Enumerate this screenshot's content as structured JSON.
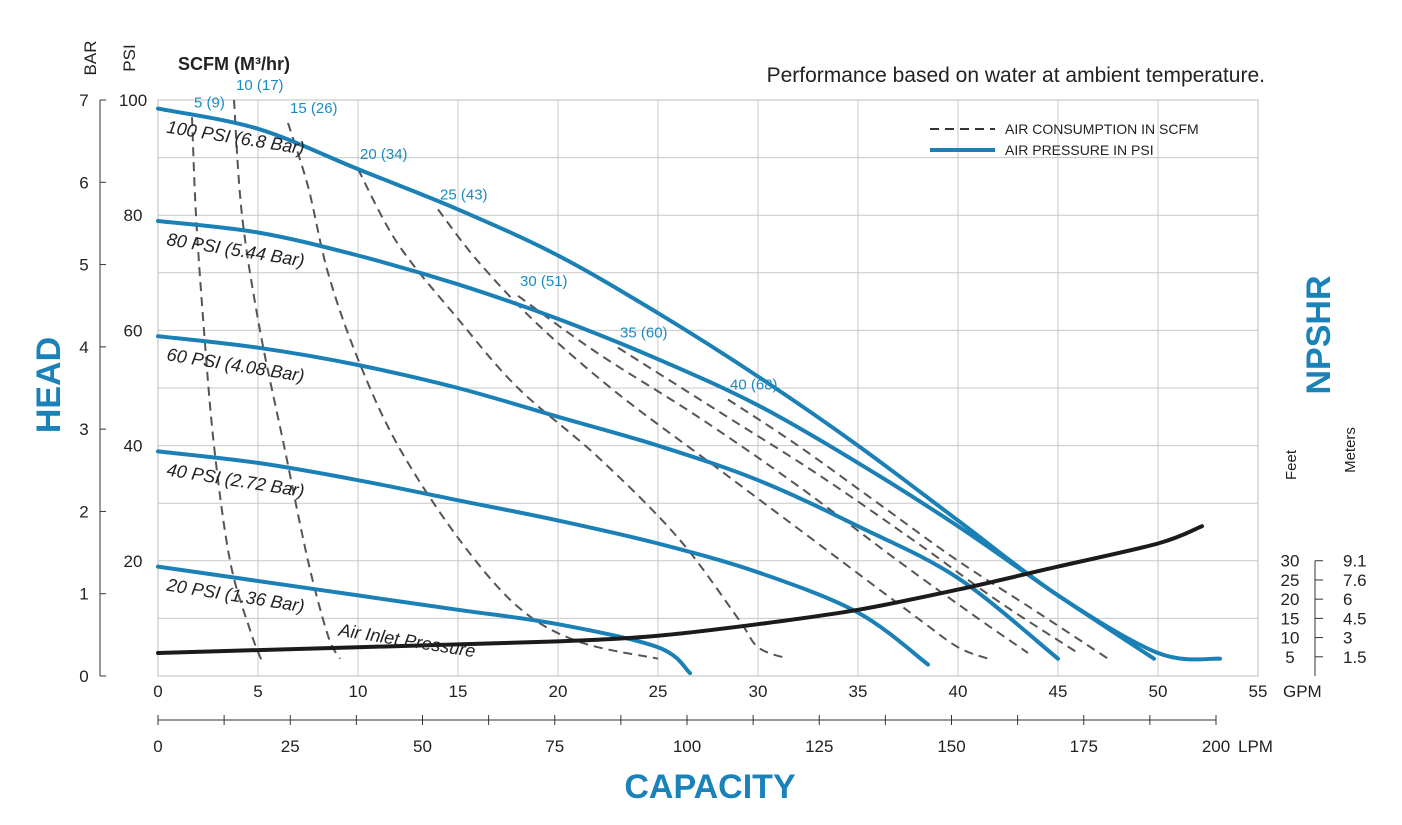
{
  "chart_data": {
    "type": "line",
    "title": "Performance based on water at ambient temperature.",
    "xlabel": "CAPACITY",
    "ylabel": "HEAD",
    "y2label": "NPSHR",
    "x_unit_primary": "GPM",
    "x_unit_secondary": "LPM",
    "y_unit_bar": "BAR",
    "y_unit_psi": "PSI",
    "scfm_header": "SCFM (M³/hr)",
    "xlim": [
      0,
      55
    ],
    "ylim_psi": [
      0,
      100
    ],
    "x_ticks_gpm": [
      "0",
      "5",
      "10",
      "15",
      "20",
      "25",
      "30",
      "35",
      "40",
      "45",
      "50",
      "55"
    ],
    "x_ticks_lpm": [
      "0",
      "25",
      "50",
      "75",
      "100",
      "125",
      "150",
      "175",
      "200"
    ],
    "y_ticks_bar": [
      "0",
      "1",
      "2",
      "3",
      "4",
      "5",
      "6",
      "7"
    ],
    "y_ticks_psi": [
      "20",
      "40",
      "60",
      "80",
      "100"
    ],
    "npshr_feet_label": "Feet",
    "npshr_meters_label": "Meters",
    "npshr_feet": [
      "30",
      "25",
      "20",
      "15",
      "10",
      "5"
    ],
    "npshr_meters": [
      "9.1",
      "7.6",
      "6",
      "4.5",
      "3",
      "1.5"
    ],
    "legend": {
      "placement": "top-right",
      "dashed_label": "AIR CONSUMPTION IN SCFM",
      "solid_label": "AIR PRESSURE IN PSI"
    },
    "pressure_curves": [
      {
        "label": "100 PSI (6.8 Bar)",
        "points": [
          [
            0,
            98.5
          ],
          [
            5,
            95
          ],
          [
            10,
            88
          ],
          [
            15,
            81
          ],
          [
            20,
            73
          ],
          [
            25,
            63
          ],
          [
            30,
            52
          ],
          [
            35,
            40
          ],
          [
            40,
            27
          ],
          [
            45,
            14
          ],
          [
            50,
            4
          ],
          [
            53.1,
            3
          ]
        ]
      },
      {
        "label": "80 PSI (5.44 Bar)",
        "points": [
          [
            0,
            79
          ],
          [
            5,
            77
          ],
          [
            10,
            73
          ],
          [
            15,
            68
          ],
          [
            20,
            62
          ],
          [
            25,
            55
          ],
          [
            30,
            47
          ],
          [
            35,
            37
          ],
          [
            40,
            26
          ],
          [
            45,
            14
          ],
          [
            49.8,
            3
          ]
        ]
      },
      {
        "label": "60 PSI (4.08 Bar)",
        "points": [
          [
            0,
            59
          ],
          [
            5,
            57
          ],
          [
            10,
            54
          ],
          [
            15,
            50
          ],
          [
            20,
            45
          ],
          [
            25,
            40
          ],
          [
            30,
            34
          ],
          [
            35,
            26
          ],
          [
            40,
            17
          ],
          [
            45,
            3
          ]
        ]
      },
      {
        "label": "40 PSI (2.72 Bar)",
        "points": [
          [
            0,
            39
          ],
          [
            5,
            37
          ],
          [
            10,
            34
          ],
          [
            15,
            30.5
          ],
          [
            20,
            27
          ],
          [
            25,
            23
          ],
          [
            30,
            18
          ],
          [
            35,
            11
          ],
          [
            38.5,
            2
          ]
        ]
      },
      {
        "label": "20 PSI (1.36 Bar)",
        "points": [
          [
            0,
            19
          ],
          [
            5,
            16.5
          ],
          [
            10,
            14
          ],
          [
            15,
            11.5
          ],
          [
            20,
            9
          ],
          [
            25,
            5
          ],
          [
            26.6,
            0.5
          ]
        ]
      }
    ],
    "air_inlet_label": "Air Inlet Pressure",
    "scfm_curves": [
      {
        "label": "5 (9)",
        "points": [
          [
            1.7,
            97
          ],
          [
            1.9,
            80
          ],
          [
            2.3,
            60
          ],
          [
            2.8,
            40
          ],
          [
            3.6,
            20
          ],
          [
            4.6,
            8
          ],
          [
            5.2,
            2.5
          ]
        ]
      },
      {
        "label": "10 (17)",
        "points": [
          [
            3.8,
            100
          ],
          [
            4.2,
            80
          ],
          [
            5.1,
            60
          ],
          [
            6.3,
            40
          ],
          [
            7.5,
            20
          ],
          [
            8.5,
            7
          ],
          [
            9.1,
            3
          ]
        ]
      },
      {
        "label": "15 (26)",
        "points": [
          [
            6.5,
            96
          ],
          [
            7.5,
            85
          ],
          [
            8.5,
            70
          ],
          [
            10,
            55
          ],
          [
            12,
            40
          ],
          [
            15,
            24
          ],
          [
            18,
            12
          ],
          [
            21,
            6
          ],
          [
            25,
            3
          ]
        ]
      },
      {
        "label": "20 (34)",
        "points": [
          [
            10,
            88
          ],
          [
            12,
            75
          ],
          [
            15,
            62
          ],
          [
            18,
            50
          ],
          [
            22,
            38
          ],
          [
            26,
            24
          ],
          [
            29,
            10
          ],
          [
            30,
            5
          ],
          [
            31.5,
            3
          ]
        ]
      },
      {
        "label": "25 (43)",
        "points": [
          [
            14,
            81
          ],
          [
            16,
            72
          ],
          [
            19,
            61
          ],
          [
            23,
            49
          ],
          [
            28,
            36
          ],
          [
            33,
            23
          ],
          [
            38,
            10
          ],
          [
            40,
            5
          ],
          [
            41.5,
            3
          ]
        ]
      },
      {
        "label": "30 (51)",
        "points": [
          [
            18,
            66
          ],
          [
            22,
            56
          ],
          [
            27,
            45
          ],
          [
            32,
            33
          ],
          [
            37,
            20
          ],
          [
            41,
            10
          ],
          [
            43.5,
            4
          ]
        ]
      },
      {
        "label": "35 (60)",
        "points": [
          [
            23,
            57
          ],
          [
            28,
            46
          ],
          [
            33,
            35
          ],
          [
            38,
            23
          ],
          [
            42,
            13
          ],
          [
            46,
            4
          ]
        ]
      },
      {
        "label": "40 (68)",
        "points": [
          [
            28.5,
            48
          ],
          [
            32,
            40
          ],
          [
            36,
            30
          ],
          [
            40,
            20
          ],
          [
            44,
            11
          ],
          [
            47.5,
            3
          ]
        ]
      }
    ],
    "npshr_curve": {
      "label": "NPSHR",
      "points": [
        [
          0,
          4
        ],
        [
          10,
          5
        ],
        [
          20,
          6
        ],
        [
          25,
          7
        ],
        [
          30,
          9
        ],
        [
          35,
          11.5
        ],
        [
          40,
          15
        ],
        [
          45,
          19
        ],
        [
          50,
          23
        ],
        [
          52.2,
          26
        ]
      ]
    }
  }
}
